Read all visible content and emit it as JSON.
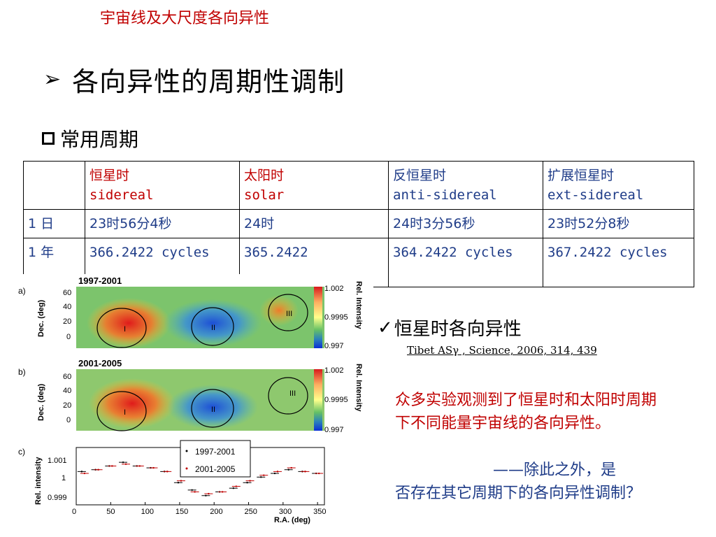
{
  "header": {
    "text": "宇宙线及大尺度各向异性"
  },
  "title": {
    "bullet": "➢",
    "text": "各向异性的周期性调制"
  },
  "subtitle": {
    "text": "常用周期"
  },
  "table": {
    "headers": [
      {
        "zh": "",
        "en": ""
      },
      {
        "zh": "恒星时",
        "en": "sidereal"
      },
      {
        "zh": "太阳时",
        "en": "solar"
      },
      {
        "zh": "反恒星时",
        "en": "anti-sidereal"
      },
      {
        "zh": "扩展恒星时",
        "en": "ext-sidereal"
      }
    ],
    "rows": [
      [
        "1 日",
        "23时56分4秒",
        "24时",
        "24时3分56秒",
        "23时52分8秒"
      ],
      [
        "1 年",
        "366.2422 cycles",
        "365.2422",
        "364.2422 cycles",
        "367.2422 cycles"
      ]
    ]
  },
  "figure": {
    "panel_a": {
      "label": "a)",
      "period": "1997-2001"
    },
    "panel_b": {
      "label": "b)",
      "period": "2001-2005"
    },
    "panel_c": {
      "label": "c)"
    },
    "dec_axis_label": "Dec. (deg)",
    "dec_ticks": [
      "60",
      "40",
      "20",
      "0"
    ],
    "colorbar_label": "Rel. Intensity",
    "colorbar_ticks": [
      "1.002",
      "0.9995",
      "0.997"
    ],
    "regions": [
      "I",
      "II",
      "III"
    ],
    "rel_axis_label": "Rel. intensity",
    "rel_ticks": [
      "1.001",
      "1",
      "0.999"
    ],
    "ra_axis_label": "R.A. (deg)",
    "ra_ticks": [
      "0",
      "50",
      "100",
      "150",
      "200",
      "250",
      "300",
      "350"
    ],
    "legend": [
      "1997-2001",
      "2001-2005"
    ]
  },
  "chart_data": {
    "type": "scatter",
    "xlabel": "R.A. (deg)",
    "ylabel": "Rel. intensity",
    "xlim": [
      0,
      360
    ],
    "ylim": [
      0.9986,
      1.0017
    ],
    "series": [
      {
        "name": "1997-2001",
        "x": [
          10,
          30,
          50,
          70,
          90,
          110,
          130,
          150,
          170,
          190,
          210,
          230,
          250,
          270,
          290,
          310,
          330,
          350
        ],
        "y": [
          1.0004,
          1.0005,
          1.0007,
          1.0009,
          1.0007,
          1.0006,
          1.0004,
          0.9998,
          0.9994,
          0.9991,
          0.9993,
          0.9995,
          0.9998,
          1.0001,
          1.0003,
          1.0005,
          1.0004,
          1.0003
        ]
      },
      {
        "name": "2001-2005",
        "x": [
          10,
          30,
          50,
          70,
          90,
          110,
          130,
          150,
          170,
          190,
          210,
          230,
          250,
          270,
          290,
          310,
          330,
          350
        ],
        "y": [
          1.0003,
          1.0005,
          1.0007,
          1.0008,
          1.0007,
          1.0006,
          1.0004,
          0.9999,
          0.9993,
          0.9992,
          0.9993,
          0.9996,
          0.9999,
          1.0002,
          1.0004,
          1.0006,
          1.0004,
          1.0003
        ]
      }
    ]
  },
  "check": {
    "mark": "✓",
    "text": "恒星时各向异性"
  },
  "citation": {
    "text": "Tibet ASγ , Science, 2006, 314, 439"
  },
  "body": {
    "red": "众多实验观测到了恒星时和太阳时周期下不同能量宇宙线的各向异性。",
    "blue_lead": "——除此之外，是",
    "blue_rest": "否存在其它周期下的各向异性调制？"
  },
  "colors": {
    "accent_red": "#c00000",
    "accent_blue": "#1f3c88"
  }
}
